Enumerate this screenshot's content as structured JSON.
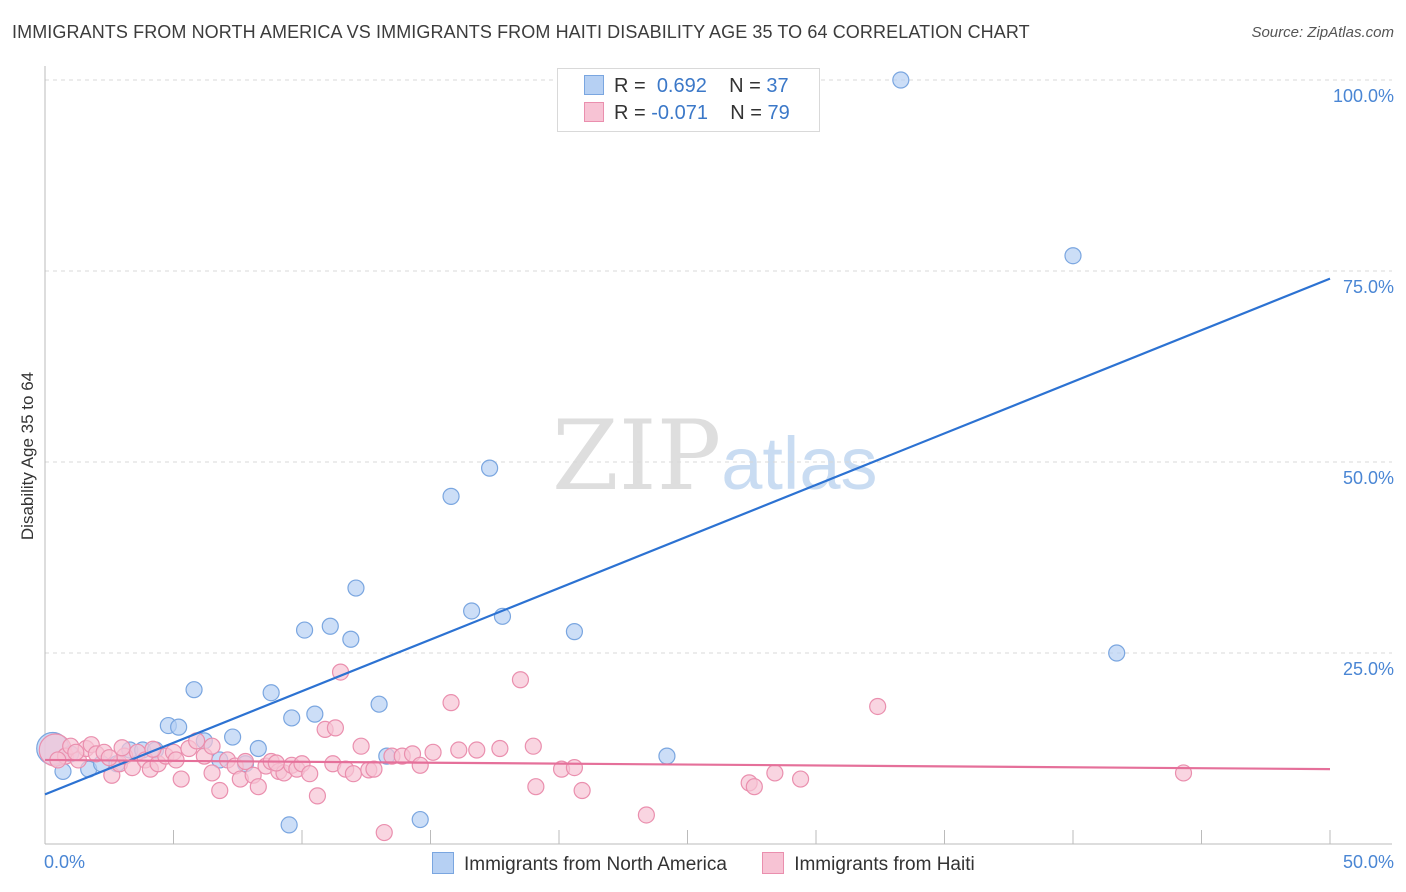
{
  "title": "IMMIGRANTS FROM NORTH AMERICA VS IMMIGRANTS FROM HAITI DISABILITY AGE 35 TO 64 CORRELATION CHART",
  "source": "Source: ZipAtlas.com",
  "watermark": {
    "zip": "ZIP",
    "atlas": "atlas"
  },
  "colors": {
    "blue_fill": "#b6d0f3",
    "blue_stroke": "#7aa6e0",
    "blue_line": "#2c72d2",
    "pink_fill": "#f7c3d4",
    "pink_stroke": "#ea8fae",
    "pink_line": "#e5709a",
    "grid": "#d8d8d8",
    "tick_text": "#4a86d4"
  },
  "legend": {
    "rows": [
      {
        "r_label": "R =",
        "r_value": "0.692",
        "n_label": "N =",
        "n_value": "37"
      },
      {
        "r_label": "R =",
        "r_value": "-0.071",
        "n_label": "N =",
        "n_value": "79"
      }
    ]
  },
  "bottom_legend": [
    "Immigrants from North America",
    "Immigrants from Haiti"
  ],
  "chart_data": {
    "type": "scatter",
    "title": "IMMIGRANTS FROM NORTH AMERICA VS IMMIGRANTS FROM HAITI DISABILITY AGE 35 TO 64 CORRELATION CHART",
    "xlabel": "",
    "ylabel": "Disability Age 35 to 64",
    "xlim": [
      0,
      50
    ],
    "ylim": [
      0,
      102
    ],
    "x_tick_labels": [
      "0.0%",
      "50.0%"
    ],
    "y_tick_labels": [
      "25.0%",
      "50.0%",
      "75.0%",
      "100.0%"
    ],
    "y_ticks": [
      25,
      50,
      75,
      100
    ],
    "grid": true,
    "series": [
      {
        "name": "Immigrants from North America",
        "color": "blue",
        "trend": {
          "x": [
            0,
            50
          ],
          "y": [
            6.5,
            74
          ]
        },
        "points": [
          {
            "x": 0.3,
            "y": 12.5,
            "big": true
          },
          {
            "x": 0.7,
            "y": 9.5
          },
          {
            "x": 1.7,
            "y": 9.8
          },
          {
            "x": 2.2,
            "y": 10.5
          },
          {
            "x": 2.8,
            "y": 10.5
          },
          {
            "x": 3.3,
            "y": 12.3
          },
          {
            "x": 3.8,
            "y": 12.3
          },
          {
            "x": 4.3,
            "y": 12.3
          },
          {
            "x": 4.8,
            "y": 15.5
          },
          {
            "x": 5.2,
            "y": 15.3
          },
          {
            "x": 5.8,
            "y": 20.2
          },
          {
            "x": 6.2,
            "y": 13.5
          },
          {
            "x": 6.8,
            "y": 11
          },
          {
            "x": 7.3,
            "y": 14
          },
          {
            "x": 7.8,
            "y": 10.5
          },
          {
            "x": 8.3,
            "y": 12.5
          },
          {
            "x": 8.8,
            "y": 19.8
          },
          {
            "x": 9.5,
            "y": 2.5
          },
          {
            "x": 9.6,
            "y": 16.5
          },
          {
            "x": 10.1,
            "y": 28
          },
          {
            "x": 10.5,
            "y": 17
          },
          {
            "x": 11.1,
            "y": 28.5
          },
          {
            "x": 11.9,
            "y": 26.8
          },
          {
            "x": 12.1,
            "y": 33.5
          },
          {
            "x": 13.0,
            "y": 18.3
          },
          {
            "x": 13.3,
            "y": 11.5
          },
          {
            "x": 14.6,
            "y": 3.2
          },
          {
            "x": 15.8,
            "y": 45.5
          },
          {
            "x": 16.6,
            "y": 30.5
          },
          {
            "x": 17.3,
            "y": 49.2
          },
          {
            "x": 17.8,
            "y": 29.8
          },
          {
            "x": 20.6,
            "y": 27.8
          },
          {
            "x": 24.2,
            "y": 11.5
          },
          {
            "x": 33.3,
            "y": 100
          },
          {
            "x": 40.0,
            "y": 77
          },
          {
            "x": 41.7,
            "y": 25
          },
          {
            "x": 1.0,
            "y": 11.8
          }
        ]
      },
      {
        "name": "Immigrants from Haiti",
        "color": "pink",
        "trend": {
          "x": [
            0,
            50
          ],
          "y": [
            11.0,
            9.8
          ]
        },
        "points": [
          {
            "x": 0.4,
            "y": 12.3,
            "big": true
          },
          {
            "x": 0.8,
            "y": 11.5
          },
          {
            "x": 1.0,
            "y": 12.8
          },
          {
            "x": 1.3,
            "y": 11
          },
          {
            "x": 1.6,
            "y": 12.5
          },
          {
            "x": 1.8,
            "y": 13
          },
          {
            "x": 2.0,
            "y": 11.8
          },
          {
            "x": 2.3,
            "y": 12
          },
          {
            "x": 2.6,
            "y": 9
          },
          {
            "x": 2.9,
            "y": 10.5
          },
          {
            "x": 3.1,
            "y": 11.5
          },
          {
            "x": 3.4,
            "y": 10
          },
          {
            "x": 3.6,
            "y": 12
          },
          {
            "x": 3.9,
            "y": 11
          },
          {
            "x": 4.1,
            "y": 9.8
          },
          {
            "x": 4.4,
            "y": 10.5
          },
          {
            "x": 4.7,
            "y": 11.5
          },
          {
            "x": 5.0,
            "y": 12
          },
          {
            "x": 5.3,
            "y": 8.5
          },
          {
            "x": 5.6,
            "y": 12.5
          },
          {
            "x": 5.9,
            "y": 13.5
          },
          {
            "x": 6.2,
            "y": 11.5
          },
          {
            "x": 6.5,
            "y": 12.8
          },
          {
            "x": 6.5,
            "y": 9.3
          },
          {
            "x": 6.8,
            "y": 7
          },
          {
            "x": 7.1,
            "y": 11
          },
          {
            "x": 7.4,
            "y": 10.2
          },
          {
            "x": 7.6,
            "y": 8.5
          },
          {
            "x": 7.8,
            "y": 10.8
          },
          {
            "x": 8.1,
            "y": 9
          },
          {
            "x": 8.3,
            "y": 7.5
          },
          {
            "x": 8.6,
            "y": 10.2
          },
          {
            "x": 8.8,
            "y": 10.8
          },
          {
            "x": 9.1,
            "y": 9.5
          },
          {
            "x": 9.3,
            "y": 9.3
          },
          {
            "x": 9.6,
            "y": 10.3
          },
          {
            "x": 9.8,
            "y": 9.8
          },
          {
            "x": 10.0,
            "y": 10.5
          },
          {
            "x": 10.3,
            "y": 9.2
          },
          {
            "x": 10.6,
            "y": 6.3
          },
          {
            "x": 10.9,
            "y": 15
          },
          {
            "x": 11.2,
            "y": 10.5
          },
          {
            "x": 11.5,
            "y": 22.5
          },
          {
            "x": 11.7,
            "y": 9.8
          },
          {
            "x": 12.0,
            "y": 9.2
          },
          {
            "x": 12.3,
            "y": 12.8
          },
          {
            "x": 12.6,
            "y": 9.7
          },
          {
            "x": 12.8,
            "y": 9.8
          },
          {
            "x": 13.2,
            "y": 1.5
          },
          {
            "x": 13.5,
            "y": 11.5
          },
          {
            "x": 13.9,
            "y": 11.5
          },
          {
            "x": 14.3,
            "y": 11.8
          },
          {
            "x": 14.6,
            "y": 10.3
          },
          {
            "x": 15.1,
            "y": 12
          },
          {
            "x": 15.8,
            "y": 18.5
          },
          {
            "x": 16.1,
            "y": 12.3
          },
          {
            "x": 16.8,
            "y": 12.3
          },
          {
            "x": 17.7,
            "y": 12.5
          },
          {
            "x": 18.5,
            "y": 21.5
          },
          {
            "x": 19.1,
            "y": 7.5
          },
          {
            "x": 19.0,
            "y": 12.8
          },
          {
            "x": 20.1,
            "y": 9.8
          },
          {
            "x": 20.6,
            "y": 10
          },
          {
            "x": 20.9,
            "y": 7
          },
          {
            "x": 23.4,
            "y": 3.8
          },
          {
            "x": 27.4,
            "y": 8
          },
          {
            "x": 27.6,
            "y": 7.5
          },
          {
            "x": 28.4,
            "y": 9.3
          },
          {
            "x": 29.4,
            "y": 8.5
          },
          {
            "x": 32.4,
            "y": 18
          },
          {
            "x": 44.3,
            "y": 9.3
          },
          {
            "x": 0.5,
            "y": 11
          },
          {
            "x": 1.2,
            "y": 12
          },
          {
            "x": 2.5,
            "y": 11.3
          },
          {
            "x": 3.0,
            "y": 12.6
          },
          {
            "x": 4.2,
            "y": 12.4
          },
          {
            "x": 5.1,
            "y": 11
          },
          {
            "x": 9.0,
            "y": 10.6
          },
          {
            "x": 11.3,
            "y": 15.2
          }
        ]
      }
    ]
  }
}
